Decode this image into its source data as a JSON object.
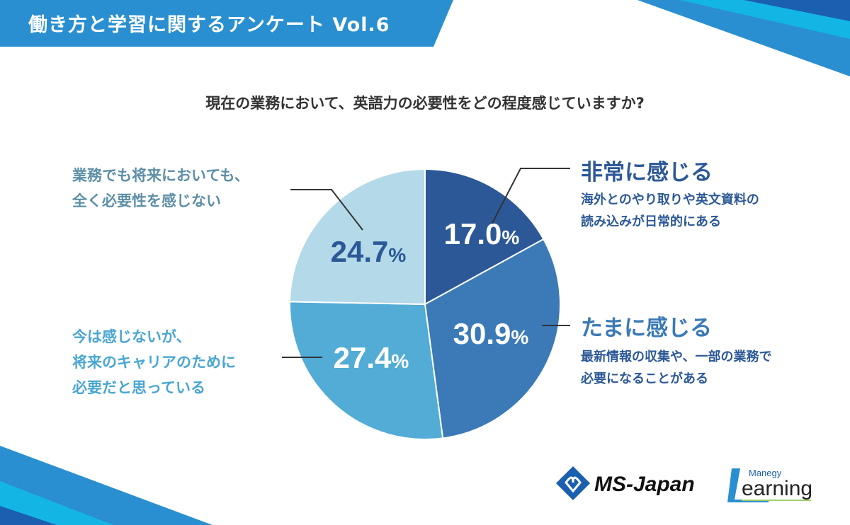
{
  "header": {
    "title": "働き方と学習に関するアンケート Vol.6"
  },
  "question": "現在の業務において、英語力の必要性をどの程度感じていますか?",
  "chart_data": {
    "type": "pie",
    "title": "現在の業務において、英語力の必要性をどの程度感じていますか?",
    "start": "top",
    "direction": "clockwise",
    "slices": [
      {
        "label": "非常に感じる",
        "description": [
          "海外とのやり取りや英文資料の",
          "読み込みが日常的にある"
        ],
        "value": 17.0,
        "display": "17.0%",
        "color": "#2c5897"
      },
      {
        "label": "たまに感じる",
        "description": [
          "最新情報の収集や、一部の業務で",
          "必要になることがある"
        ],
        "value": 30.9,
        "display": "30.9%",
        "color": "#3b7ab6"
      },
      {
        "label": "",
        "description": [
          "今は感じないが、",
          "将来のキャリアのために",
          "必要だと思っている"
        ],
        "value": 27.4,
        "display": "27.4%",
        "color": "#52acd5"
      },
      {
        "label": "",
        "description": [
          "業務でも将来においても、",
          "全く必要性を感じない"
        ],
        "value": 24.7,
        "display": "24.7%",
        "color": "#b4d9e8"
      }
    ]
  },
  "logos": {
    "ms_japan": "MS-Japan",
    "manegy": "Manegy",
    "learning": "Learning"
  },
  "colors": {
    "banner": "#2a8fd0",
    "text_dark": "#2c5897",
    "text_mid": "#3b7ab6",
    "text_light": "#4aa6d2",
    "text_gray": "#5d8fa7"
  }
}
